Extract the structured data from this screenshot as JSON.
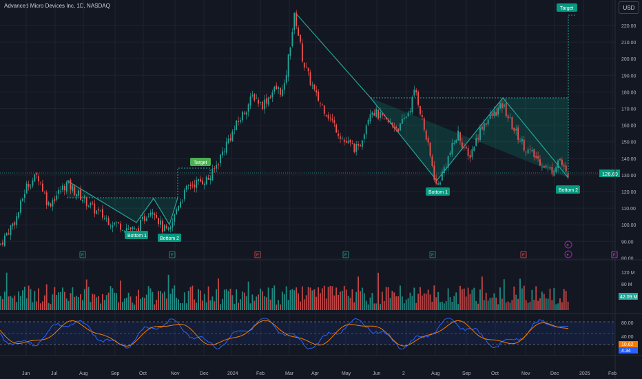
{
  "header": {
    "symbol_title": "Advanced Micro Devices Inc, 1D, NASDAQ",
    "currency_label": "USD"
  },
  "price_axis": {
    "labels": [
      "220.00",
      "210.00",
      "200.00",
      "190.00",
      "180.00",
      "170.00",
      "160.00",
      "150.00",
      "140.00",
      "130.00",
      "120.00",
      "110.00",
      "100.00",
      "90.00",
      "80.00"
    ],
    "last_price": "126.69",
    "last_price_color": "#089981"
  },
  "volume_axis": {
    "labels": [
      "120 M",
      "80 M"
    ],
    "current": "42.09 M"
  },
  "oscillator_axis": {
    "labels": [
      "80.00",
      "40.00"
    ],
    "value_k": "10.62",
    "value_d": "4.34",
    "k_color": "#f57c00",
    "d_color": "#2962ff"
  },
  "time_axis": [
    "Jun",
    "Jul",
    "Aug",
    "Sep",
    "Oct",
    "Nov",
    "Dec",
    "2024",
    "Feb",
    "Mar",
    "Apr",
    "May",
    "Jun",
    "2",
    "Aug",
    "Sep",
    "Oct",
    "Nov",
    "Dec",
    "2025",
    "Feb"
  ],
  "annotations": {
    "target_left": "Target",
    "target_right": "Target",
    "bottom1_left": "Bottom 1",
    "bottom2_left": "Bottom 2",
    "bottom1_right": "Bottom 1",
    "bottom2_right": "Bottom 2"
  },
  "event_markers": {
    "earnings": [
      "E",
      "E",
      "E",
      "E",
      "E",
      "E",
      "E",
      "E"
    ],
    "plus_icon": "+",
    "split_icon": "⚡"
  },
  "colors": {
    "up": "#26a69a",
    "down": "#ef5350",
    "pattern": "#089981",
    "accent_label": "#089981",
    "target_label": "#26a69a"
  }
}
